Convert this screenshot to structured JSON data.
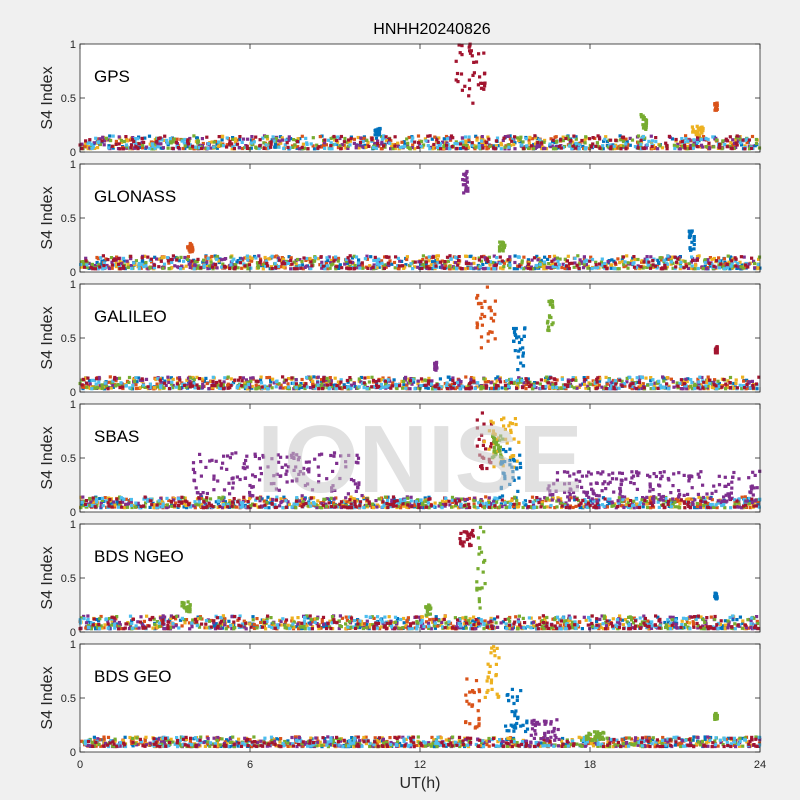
{
  "figure": {
    "title": "HNHH20240826",
    "watermark": "IONISE",
    "background_color": "#f0f0f0",
    "axes_background_color": "#ffffff"
  },
  "chart_data": {
    "type": "scatter",
    "title": "HNHH20240826",
    "xlabel": "UT(h)",
    "ylabel": "S4 Index",
    "xlim": [
      0,
      24
    ],
    "ylim": [
      0,
      1
    ],
    "xticks": [
      0,
      6,
      12,
      18,
      24
    ],
    "yticks": [
      0,
      0.5,
      1
    ],
    "grid": false,
    "legend": "none",
    "series_colors": [
      "#0072bd",
      "#d95319",
      "#edb120",
      "#7e2f8e",
      "#77ac30",
      "#4dbeee",
      "#a2142f"
    ],
    "panels": [
      {
        "name": "GPS",
        "baseline_range": [
          0.03,
          0.15
        ],
        "events": [
          {
            "x": [
              13.2,
              14.3
            ],
            "y": [
              0.45,
              1.0
            ],
            "color": "#a2142f",
            "description_series": "dark red"
          },
          {
            "x": [
              19.8,
              20.0
            ],
            "y": [
              0.2,
              0.37
            ],
            "color": "#77ac30"
          },
          {
            "x": [
              22.4,
              22.5
            ],
            "y": [
              0.38,
              0.46
            ],
            "color": "#d95319"
          },
          {
            "x": [
              21.6,
              22.0
            ],
            "y": [
              0.15,
              0.24
            ],
            "color": "#edb120"
          },
          {
            "x": [
              10.4,
              10.6
            ],
            "y": [
              0.15,
              0.22
            ],
            "color": "#0072bd"
          }
        ]
      },
      {
        "name": "GLONASS",
        "baseline_range": [
          0.03,
          0.15
        ],
        "events": [
          {
            "x": [
              13.5,
              13.7
            ],
            "y": [
              0.72,
              0.97
            ],
            "color": "#7e2f8e"
          },
          {
            "x": [
              21.5,
              21.7
            ],
            "y": [
              0.2,
              0.38
            ],
            "color": "#0072bd"
          },
          {
            "x": [
              3.8,
              4.0
            ],
            "y": [
              0.18,
              0.27
            ],
            "color": "#d95319"
          },
          {
            "x": [
              14.8,
              15.0
            ],
            "y": [
              0.18,
              0.28
            ],
            "color": "#77ac30"
          }
        ]
      },
      {
        "name": "GALILEO",
        "baseline_range": [
          0.03,
          0.14
        ],
        "events": [
          {
            "x": [
              14.0,
              14.7
            ],
            "y": [
              0.35,
              0.98
            ],
            "color": "#d95319"
          },
          {
            "x": [
              15.2,
              15.8
            ],
            "y": [
              0.2,
              0.6
            ],
            "color": "#0072bd"
          },
          {
            "x": [
              16.5,
              16.7
            ],
            "y": [
              0.55,
              0.85
            ],
            "color": "#77ac30"
          },
          {
            "x": [
              12.5,
              12.6
            ],
            "y": [
              0.2,
              0.28
            ],
            "color": "#7e2f8e"
          },
          {
            "x": [
              22.4,
              22.5
            ],
            "y": [
              0.36,
              0.42
            ],
            "color": "#a2142f"
          }
        ]
      },
      {
        "name": "SBAS",
        "baseline_range": [
          0.04,
          0.14
        ],
        "events": [
          {
            "x": [
              4.0,
              10.0
            ],
            "y": [
              0.15,
              0.55
            ],
            "color": "#7e2f8e"
          },
          {
            "x": [
              14.0,
              14.6
            ],
            "y": [
              0.4,
              0.95
            ],
            "color": "#a2142f"
          },
          {
            "x": [
              14.2,
              15.5
            ],
            "y": [
              0.4,
              0.88
            ],
            "color": "#edb120"
          },
          {
            "x": [
              14.8,
              15.6
            ],
            "y": [
              0.1,
              0.6
            ],
            "color": "#0072bd"
          },
          {
            "x": [
              14.5,
              15.0
            ],
            "y": [
              0.5,
              0.72
            ],
            "color": "#77ac30"
          },
          {
            "x": [
              16.5,
              24.0
            ],
            "y": [
              0.1,
              0.38
            ],
            "color": "#7e2f8e"
          }
        ]
      },
      {
        "name": "BDS NGEO",
        "baseline_range": [
          0.03,
          0.15
        ],
        "events": [
          {
            "x": [
              13.4,
              13.9
            ],
            "y": [
              0.78,
              0.95
            ],
            "color": "#a2142f"
          },
          {
            "x": [
              14.0,
              14.3
            ],
            "y": [
              0.2,
              0.98
            ],
            "color": "#77ac30"
          },
          {
            "x": [
              12.2,
              12.4
            ],
            "y": [
              0.15,
              0.25
            ],
            "color": "#77ac30"
          },
          {
            "x": [
              22.4,
              22.5
            ],
            "y": [
              0.3,
              0.36
            ],
            "color": "#0072bd"
          },
          {
            "x": [
              3.6,
              3.9
            ],
            "y": [
              0.18,
              0.28
            ],
            "color": "#77ac30"
          }
        ]
      },
      {
        "name": "BDS GEO",
        "baseline_range": [
          0.05,
          0.14
        ],
        "events": [
          {
            "x": [
              13.6,
              14.1
            ],
            "y": [
              0.2,
              0.72
            ],
            "color": "#d95319"
          },
          {
            "x": [
              14.3,
              14.8
            ],
            "y": [
              0.5,
              1.0
            ],
            "color": "#edb120"
          },
          {
            "x": [
              15.0,
              15.8
            ],
            "y": [
              0.15,
              0.6
            ],
            "color": "#0072bd"
          },
          {
            "x": [
              15.9,
              17.0
            ],
            "y": [
              0.1,
              0.3
            ],
            "color": "#7e2f8e"
          },
          {
            "x": [
              17.8,
              18.5
            ],
            "y": [
              0.1,
              0.2
            ],
            "color": "#77ac30"
          },
          {
            "x": [
              22.4,
              22.5
            ],
            "y": [
              0.3,
              0.36
            ],
            "color": "#77ac30"
          }
        ]
      }
    ]
  }
}
